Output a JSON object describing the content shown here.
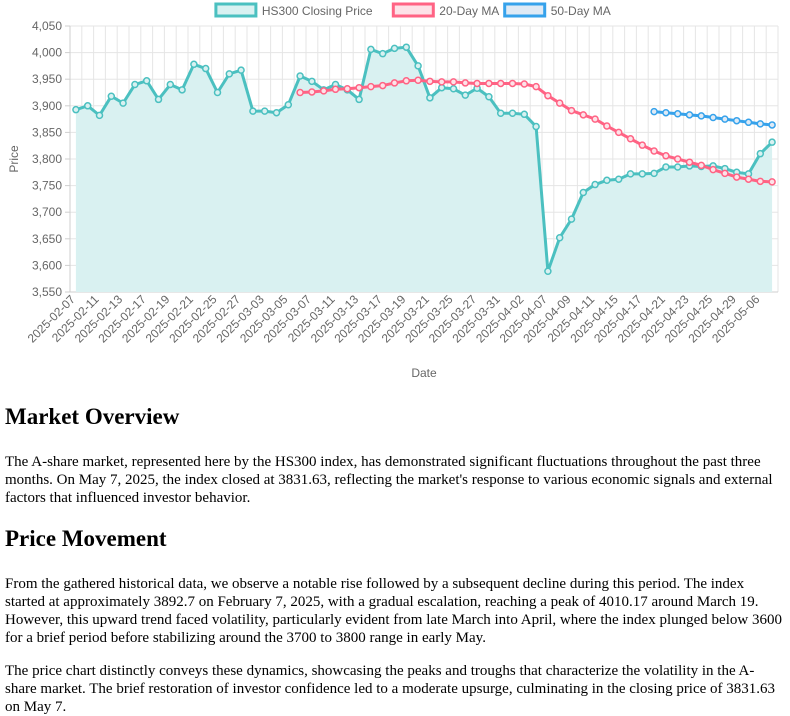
{
  "chart_data": {
    "type": "line",
    "xlabel": "Date",
    "ylabel": "Price",
    "ylim": [
      3550,
      4050
    ],
    "yticks": [
      3550,
      3600,
      3650,
      3700,
      3750,
      3800,
      3850,
      3900,
      3950,
      4000,
      4050
    ],
    "ytick_labels": [
      "3,550",
      "3,600",
      "3,650",
      "3,700",
      "3,750",
      "3,800",
      "3,850",
      "3,900",
      "3,950",
      "4,000",
      "4,050"
    ],
    "legend_position": "top",
    "x": [
      "2025-02-07",
      "2025-02-10",
      "2025-02-11",
      "2025-02-12",
      "2025-02-13",
      "2025-02-14",
      "2025-02-17",
      "2025-02-18",
      "2025-02-19",
      "2025-02-20",
      "2025-02-21",
      "2025-02-24",
      "2025-02-25",
      "2025-02-26",
      "2025-02-27",
      "2025-02-28",
      "2025-03-03",
      "2025-03-04",
      "2025-03-05",
      "2025-03-06",
      "2025-03-07",
      "2025-03-10",
      "2025-03-11",
      "2025-03-12",
      "2025-03-13",
      "2025-03-14",
      "2025-03-17",
      "2025-03-18",
      "2025-03-19",
      "2025-03-20",
      "2025-03-21",
      "2025-03-24",
      "2025-03-25",
      "2025-03-26",
      "2025-03-27",
      "2025-03-28",
      "2025-03-31",
      "2025-04-01",
      "2025-04-02",
      "2025-04-03",
      "2025-04-07",
      "2025-04-08",
      "2025-04-09",
      "2025-04-10",
      "2025-04-11",
      "2025-04-14",
      "2025-04-15",
      "2025-04-16",
      "2025-04-17",
      "2025-04-18",
      "2025-04-21",
      "2025-04-22",
      "2025-04-23",
      "2025-04-24",
      "2025-04-25",
      "2025-04-28",
      "2025-04-29",
      "2025-04-30",
      "2025-05-06",
      "2025-05-07"
    ],
    "series": [
      {
        "name": "HS300 Closing Price",
        "color": "#4bc0c0",
        "fill": "#d9f1f1",
        "values": [
          3892.7,
          3900,
          3882,
          3918,
          3905,
          3940,
          3947,
          3912,
          3940,
          3930,
          3978,
          3970,
          3925,
          3960,
          3967,
          3890,
          3890,
          3887,
          3902,
          3956,
          3946,
          3930,
          3940,
          3930,
          3912,
          4006,
          3998,
          4008,
          4010.17,
          3975,
          3915,
          3934,
          3932,
          3920,
          3933,
          3917,
          3886,
          3886,
          3884,
          3861,
          3589,
          3652,
          3687,
          3737,
          3752,
          3760,
          3762,
          3772,
          3772,
          3773,
          3785,
          3785,
          3787,
          3786,
          3787,
          3782,
          3775,
          3772,
          3810,
          3831.63
        ]
      },
      {
        "name": "20-Day MA",
        "color": "#ff6384",
        "fill": "#fde2e8",
        "values": [
          null,
          null,
          null,
          null,
          null,
          null,
          null,
          null,
          null,
          null,
          null,
          null,
          null,
          null,
          null,
          null,
          null,
          null,
          null,
          3925,
          3926,
          3928,
          3931,
          3932,
          3934,
          3936,
          3938,
          3943,
          3947,
          3948,
          3946,
          3945,
          3945,
          3943,
          3942,
          3942,
          3942,
          3942,
          3941,
          3936,
          3919,
          3905,
          3891,
          3883,
          3875,
          3862,
          3850,
          3838,
          3826,
          3815,
          3806,
          3800,
          3794,
          3788,
          3780,
          3773,
          3766,
          3762,
          3758,
          3757
        ]
      },
      {
        "name": "50-Day MA",
        "color": "#36a2eb",
        "fill": "#dfeaf5",
        "values": [
          null,
          null,
          null,
          null,
          null,
          null,
          null,
          null,
          null,
          null,
          null,
          null,
          null,
          null,
          null,
          null,
          null,
          null,
          null,
          null,
          null,
          null,
          null,
          null,
          null,
          null,
          null,
          null,
          null,
          null,
          null,
          null,
          null,
          null,
          null,
          null,
          null,
          null,
          null,
          null,
          null,
          null,
          null,
          null,
          null,
          null,
          null,
          null,
          null,
          3889,
          3887,
          3885,
          3883,
          3881,
          3878,
          3875,
          3872,
          3869,
          3866,
          3864
        ]
      }
    ]
  },
  "article": {
    "overview_heading": "Market Overview",
    "overview_text": "The A-share market, represented here by the HS300 index, has demonstrated significant fluctuations throughout the past three months. On May 7, 2025, the index closed at 3831.63, reflecting the market's response to various economic signals and external factors that influenced investor behavior.",
    "movement_heading": "Price Movement",
    "movement_text": "From the gathered historical data, we observe a notable rise followed by a subsequent decline during this period. The index started at approximately 3892.7 on February 7, 2025, with a gradual escalation, reaching a peak of 4010.17 around March 19. However, this upward trend faced volatility, particularly evident from late March into April, where the index plunged below 3600 for a brief period before stabilizing around the 3700 to 3800 range in early May.",
    "chart_text": "The price chart distinctly conveys these dynamics, showcasing the peaks and troughs that characterize the volatility in the A-share market. The brief restoration of investor confidence led to a moderate upsurge, culminating in the closing price of 3831.63 on May 7."
  }
}
